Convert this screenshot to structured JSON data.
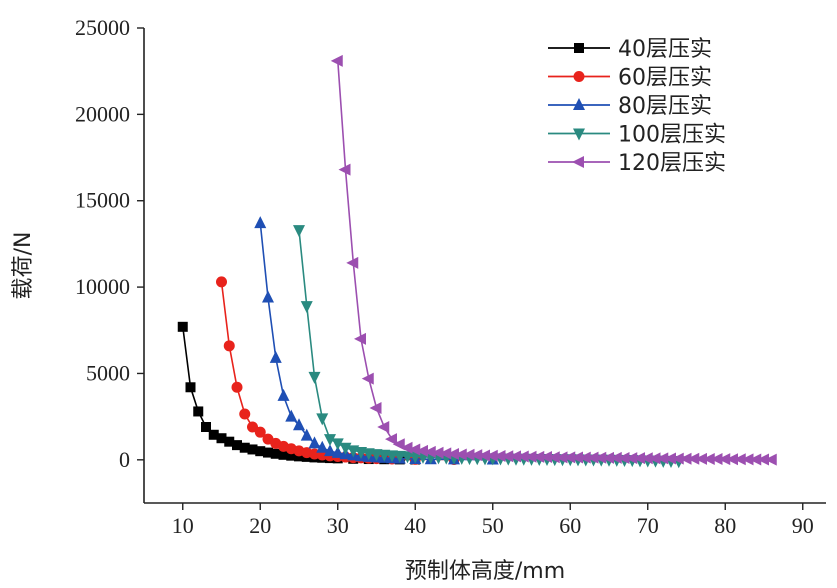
{
  "chart_data": {
    "type": "line",
    "title": "",
    "xlabel": "预制体高度/mm",
    "ylabel": "载荷/N",
    "xlim": [
      5,
      93
    ],
    "ylim": [
      -2500,
      25000
    ],
    "xticks": [
      10,
      20,
      30,
      40,
      50,
      60,
      70,
      80,
      90
    ],
    "yticks": [
      0,
      5000,
      10000,
      15000,
      20000,
      25000
    ],
    "grid": false,
    "legend_position": "top-right",
    "series": [
      {
        "name": "40层压实",
        "color": "#000000",
        "marker": "square",
        "x": [
          10,
          11,
          12,
          13,
          14,
          15,
          16,
          17,
          18,
          19,
          20,
          21,
          22,
          23,
          24,
          25,
          26,
          27,
          28,
          29,
          30,
          32,
          34,
          36,
          38,
          40
        ],
        "y": [
          7700,
          4200,
          2800,
          1900,
          1450,
          1250,
          1050,
          850,
          700,
          600,
          500,
          420,
          350,
          290,
          240,
          200,
          170,
          140,
          120,
          100,
          85,
          60,
          45,
          35,
          25,
          20
        ]
      },
      {
        "name": "60层压实",
        "color": "#e8231c",
        "marker": "circle",
        "x": [
          15,
          16,
          17,
          18,
          19,
          20,
          21,
          22,
          23,
          24,
          25,
          26,
          27,
          28,
          29,
          30,
          31,
          32,
          33,
          34,
          35,
          37,
          40,
          45
        ],
        "y": [
          10300,
          6600,
          4200,
          2650,
          1900,
          1600,
          1200,
          950,
          780,
          640,
          520,
          420,
          340,
          280,
          230,
          190,
          160,
          130,
          110,
          90,
          70,
          50,
          30,
          20
        ]
      },
      {
        "name": "80层压实",
        "color": "#1f4fb4",
        "marker": "triangle-up",
        "x": [
          20,
          21,
          22,
          23,
          24,
          25,
          26,
          27,
          28,
          29,
          30,
          31,
          32,
          33,
          34,
          35,
          36,
          37,
          38,
          40,
          42,
          45,
          50
        ],
        "y": [
          13700,
          9400,
          5900,
          3700,
          2500,
          2000,
          1400,
          950,
          700,
          500,
          400,
          320,
          260,
          210,
          170,
          140,
          110,
          90,
          70,
          50,
          35,
          25,
          15
        ]
      },
      {
        "name": "100层压实",
        "color": "#2a8a80",
        "marker": "triangle-down",
        "x": [
          25,
          26,
          27,
          28,
          29,
          30,
          31,
          32,
          33,
          34,
          35,
          36,
          37,
          38,
          39,
          40,
          41,
          42,
          43,
          44,
          45,
          46,
          47,
          48,
          49,
          50,
          51,
          52,
          53,
          54,
          55,
          56,
          57,
          58,
          59,
          60,
          61,
          62,
          63,
          64,
          65,
          66,
          67,
          68,
          69,
          70,
          71,
          72,
          73,
          74
        ],
        "y": [
          13300,
          8900,
          4800,
          2400,
          1200,
          950,
          700,
          550,
          450,
          380,
          330,
          290,
          260,
          230,
          210,
          190,
          170,
          155,
          140,
          130,
          120,
          110,
          100,
          90,
          85,
          80,
          75,
          70,
          65,
          60,
          55,
          50,
          45,
          40,
          35,
          30,
          25,
          20,
          15,
          10,
          5,
          0,
          -10,
          -20,
          -30,
          -40,
          -50,
          -60,
          -70,
          -80
        ]
      },
      {
        "name": "120层压实",
        "color": "#9c4fb0",
        "marker": "triangle-left",
        "x": [
          30,
          31,
          32,
          33,
          34,
          35,
          36,
          37,
          38,
          39,
          40,
          41,
          42,
          43,
          44,
          45,
          46,
          47,
          48,
          49,
          50,
          51,
          52,
          53,
          54,
          55,
          56,
          57,
          58,
          59,
          60,
          61,
          62,
          63,
          64,
          65,
          66,
          67,
          68,
          69,
          70,
          71,
          72,
          73,
          74,
          75,
          76,
          77,
          78,
          79,
          80,
          81,
          82,
          83,
          84,
          85,
          86
        ],
        "y": [
          23100,
          16800,
          11400,
          7000,
          4700,
          3000,
          1900,
          1200,
          900,
          700,
          600,
          520,
          460,
          410,
          370,
          340,
          310,
          290,
          270,
          250,
          235,
          220,
          210,
          200,
          190,
          180,
          170,
          160,
          150,
          145,
          140,
          135,
          130,
          125,
          120,
          115,
          110,
          105,
          100,
          95,
          90,
          85,
          80,
          75,
          70,
          65,
          60,
          55,
          50,
          45,
          40,
          35,
          30,
          25,
          20,
          15,
          10
        ]
      }
    ]
  }
}
